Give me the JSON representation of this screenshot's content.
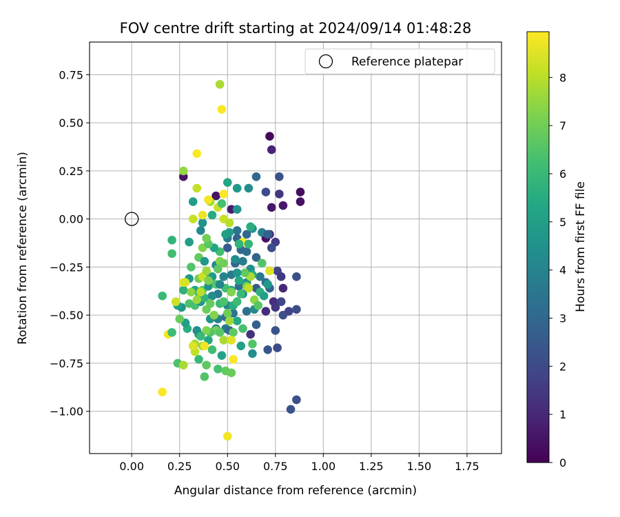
{
  "chart_data": {
    "type": "scatter",
    "title": "FOV centre drift starting at 2024/09/14 01:48:28",
    "xlabel": "Angular distance from reference (arcmin)",
    "ylabel": "Rotation from reference (arcmin)",
    "xlim": [
      -0.22,
      1.93
    ],
    "ylim": [
      -1.22,
      0.92
    ],
    "x_ticks": [
      0.0,
      0.25,
      0.5,
      0.75,
      1.0,
      1.25,
      1.5,
      1.75
    ],
    "x_tick_labels": [
      "0.00",
      "0.25",
      "0.50",
      "0.75",
      "1.00",
      "1.25",
      "1.50",
      "1.75"
    ],
    "y_ticks": [
      0.75,
      0.5,
      0.25,
      0.0,
      -0.25,
      -0.5,
      -0.75,
      -1.0
    ],
    "y_tick_labels": [
      "0.75",
      "0.50",
      "0.25",
      "0.00",
      "−0.25",
      "−0.50",
      "−0.75",
      "−1.00"
    ],
    "grid": true,
    "legend": {
      "location": "top-right",
      "entries": [
        {
          "label": "Reference platepar",
          "marker": "open-circle",
          "x": 0.0,
          "y": 0.0
        }
      ]
    },
    "colorbar": {
      "label": "Hours from first FF file",
      "colormap": "viridis",
      "range": [
        0,
        8.95
      ],
      "ticks": [
        0,
        1,
        2,
        3,
        4,
        5,
        6,
        7,
        8
      ],
      "tick_labels": [
        "0",
        "1",
        "2",
        "3",
        "4",
        "5",
        "6",
        "7",
        "8"
      ]
    },
    "points": [
      [
        0.72,
        0.43,
        0.2
      ],
      [
        0.73,
        0.36,
        0.9
      ],
      [
        0.88,
        0.14,
        0.3
      ],
      [
        0.88,
        0.09,
        0.4
      ],
      [
        0.79,
        0.07,
        0.6
      ],
      [
        0.73,
        0.06,
        0.6
      ],
      [
        0.77,
        0.13,
        1.4
      ],
      [
        0.7,
        0.14,
        2.0
      ],
      [
        0.77,
        0.22,
        2.3
      ],
      [
        0.65,
        0.22,
        3.0
      ],
      [
        0.27,
        0.22,
        0.5
      ],
      [
        0.44,
        0.12,
        0.5
      ],
      [
        0.52,
        0.05,
        0.7
      ],
      [
        0.7,
        -0.1,
        0.4
      ],
      [
        0.72,
        -0.08,
        1.2
      ],
      [
        0.75,
        -0.12,
        1.6
      ],
      [
        0.73,
        -0.15,
        2.1
      ],
      [
        0.86,
        -0.3,
        2.2
      ],
      [
        0.76,
        -0.27,
        1.8
      ],
      [
        0.78,
        -0.3,
        1.5
      ],
      [
        0.79,
        -0.36,
        1.0
      ],
      [
        0.74,
        -0.43,
        1.2
      ],
      [
        0.78,
        -0.43,
        1.9
      ],
      [
        0.75,
        -0.46,
        1.4
      ],
      [
        0.79,
        -0.5,
        2.2
      ],
      [
        0.82,
        -0.48,
        1.8
      ],
      [
        0.86,
        -0.47,
        2.1
      ],
      [
        0.7,
        -0.48,
        1.1
      ],
      [
        0.75,
        -0.58,
        2.3
      ],
      [
        0.76,
        -0.67,
        2.0
      ],
      [
        0.71,
        -0.68,
        2.4
      ],
      [
        0.86,
        -0.94,
        2.2
      ],
      [
        0.83,
        -0.99,
        2.3
      ],
      [
        0.62,
        -0.6,
        1.3
      ],
      [
        0.65,
        -0.55,
        2.7
      ],
      [
        0.6,
        -0.48,
        3.3
      ],
      [
        0.64,
        -0.47,
        4.3
      ],
      [
        0.65,
        -0.36,
        2.5
      ],
      [
        0.7,
        -0.33,
        3.1
      ],
      [
        0.72,
        -0.36,
        2.8
      ],
      [
        0.67,
        -0.3,
        3.6
      ],
      [
        0.62,
        -0.26,
        4.4
      ],
      [
        0.65,
        -0.2,
        2.9
      ],
      [
        0.6,
        -0.17,
        3.2
      ],
      [
        0.58,
        -0.12,
        2.6
      ],
      [
        0.6,
        -0.08,
        3.0
      ],
      [
        0.63,
        -0.05,
        4.5
      ],
      [
        0.68,
        -0.07,
        3.9
      ],
      [
        0.71,
        -0.08,
        2.7
      ],
      [
        0.55,
        -0.06,
        3.4
      ],
      [
        0.55,
        -0.1,
        2.8
      ],
      [
        0.5,
        -0.1,
        3.7
      ],
      [
        0.5,
        -0.15,
        2.5
      ],
      [
        0.57,
        -0.16,
        3.1
      ],
      [
        0.54,
        -0.23,
        2.9
      ],
      [
        0.52,
        -0.29,
        3.6
      ],
      [
        0.56,
        -0.35,
        3.2
      ],
      [
        0.6,
        -0.33,
        4.6
      ],
      [
        0.58,
        -0.39,
        4.1
      ],
      [
        0.52,
        -0.37,
        5.0
      ],
      [
        0.48,
        -0.3,
        4.0
      ],
      [
        0.44,
        -0.24,
        4.2
      ],
      [
        0.42,
        -0.3,
        4.8
      ],
      [
        0.45,
        -0.39,
        3.8
      ],
      [
        0.5,
        -0.45,
        4.1
      ],
      [
        0.53,
        -0.49,
        3.4
      ],
      [
        0.49,
        -0.51,
        3.2
      ],
      [
        0.45,
        -0.52,
        3.9
      ],
      [
        0.41,
        -0.52,
        4.6
      ],
      [
        0.44,
        -0.57,
        4.2
      ],
      [
        0.49,
        -0.57,
        3.5
      ],
      [
        0.51,
        -0.58,
        3.1
      ],
      [
        0.55,
        -0.53,
        5.4
      ],
      [
        0.53,
        -0.45,
        5.6
      ],
      [
        0.58,
        -0.57,
        6.3
      ],
      [
        0.57,
        -0.66,
        5.1
      ],
      [
        0.63,
        -0.7,
        4.4
      ],
      [
        0.63,
        -0.65,
        6.5
      ],
      [
        0.47,
        -0.71,
        5.2
      ],
      [
        0.42,
        -0.68,
        6.2
      ],
      [
        0.4,
        -0.63,
        5.3
      ],
      [
        0.35,
        -0.6,
        4.9
      ],
      [
        0.34,
        -0.58,
        4.4
      ],
      [
        0.29,
        -0.57,
        5.6
      ],
      [
        0.28,
        -0.54,
        5.0
      ],
      [
        0.26,
        -0.46,
        4.6
      ],
      [
        0.3,
        -0.44,
        6.4
      ],
      [
        0.27,
        -0.37,
        5.7
      ],
      [
        0.3,
        -0.31,
        4.8
      ],
      [
        0.35,
        -0.41,
        5.4
      ],
      [
        0.33,
        -0.45,
        6.3
      ],
      [
        0.36,
        -0.43,
        4.5
      ],
      [
        0.38,
        -0.41,
        5.8
      ],
      [
        0.37,
        -0.37,
        6.6
      ],
      [
        0.4,
        -0.35,
        4.5
      ],
      [
        0.38,
        -0.3,
        5.5
      ],
      [
        0.35,
        -0.31,
        7.0
      ],
      [
        0.33,
        -0.37,
        5.2
      ],
      [
        0.31,
        -0.25,
        6.5
      ],
      [
        0.35,
        -0.2,
        6.8
      ],
      [
        0.37,
        -0.15,
        7.3
      ],
      [
        0.38,
        -0.22,
        4.7
      ],
      [
        0.36,
        -0.06,
        4.1
      ],
      [
        0.37,
        -0.02,
        4.6
      ],
      [
        0.3,
        -0.12,
        5.0
      ],
      [
        0.32,
        0.09,
        5.0
      ],
      [
        0.41,
        0.09,
        7.7
      ],
      [
        0.45,
        0.06,
        8.3
      ],
      [
        0.5,
        0.19,
        5.3
      ],
      [
        0.47,
        0.08,
        6.3
      ],
      [
        0.55,
        0.16,
        4.8
      ],
      [
        0.55,
        0.05,
        4.6
      ],
      [
        0.61,
        0.16,
        4.4
      ],
      [
        0.49,
        -0.08,
        5.1
      ],
      [
        0.48,
        0.0,
        8.2
      ],
      [
        0.51,
        -0.02,
        8.0
      ],
      [
        0.58,
        -0.12,
        8.9
      ],
      [
        0.61,
        -0.13,
        5.9
      ],
      [
        0.62,
        -0.04,
        5.6
      ],
      [
        0.4,
        0.1,
        8.8
      ],
      [
        0.42,
        0.02,
        5.5
      ],
      [
        0.37,
        0.02,
        8.7
      ],
      [
        0.32,
        0.0,
        8.2
      ],
      [
        0.34,
        0.16,
        8.2
      ],
      [
        0.34,
        0.34,
        8.9
      ],
      [
        0.27,
        0.25,
        7.5
      ],
      [
        0.47,
        0.57,
        8.9
      ],
      [
        0.46,
        0.7,
        7.8
      ],
      [
        0.48,
        0.13,
        8.9
      ],
      [
        0.21,
        -0.11,
        5.8
      ],
      [
        0.21,
        -0.18,
        6.2
      ],
      [
        0.16,
        -0.4,
        6.0
      ],
      [
        0.24,
        -0.45,
        5.2
      ],
      [
        0.23,
        -0.43,
        8.3
      ],
      [
        0.27,
        -0.33,
        8.6
      ],
      [
        0.31,
        -0.38,
        7.4
      ],
      [
        0.36,
        -0.38,
        8.0
      ],
      [
        0.34,
        -0.42,
        7.6
      ],
      [
        0.37,
        -0.3,
        8.3
      ],
      [
        0.39,
        -0.27,
        7.6
      ],
      [
        0.4,
        -0.32,
        7.2
      ],
      [
        0.44,
        -0.34,
        6.5
      ],
      [
        0.46,
        -0.22,
        7.3
      ],
      [
        0.48,
        -0.23,
        7.0
      ],
      [
        0.45,
        -0.26,
        6.7
      ],
      [
        0.49,
        -0.36,
        6.2
      ],
      [
        0.52,
        -0.38,
        7.2
      ],
      [
        0.46,
        -0.44,
        6.0
      ],
      [
        0.48,
        -0.43,
        6.4
      ],
      [
        0.39,
        -0.47,
        6.9
      ],
      [
        0.43,
        -0.5,
        7.3
      ],
      [
        0.44,
        -0.58,
        7.1
      ],
      [
        0.5,
        -0.49,
        7.0
      ],
      [
        0.51,
        -0.53,
        7.6
      ],
      [
        0.53,
        -0.59,
        6.7
      ],
      [
        0.48,
        -0.63,
        7.8
      ],
      [
        0.52,
        -0.63,
        8.5
      ],
      [
        0.46,
        -0.59,
        6.6
      ],
      [
        0.41,
        -0.59,
        6.5
      ],
      [
        0.39,
        -0.58,
        7.2
      ],
      [
        0.36,
        -0.61,
        6.0
      ],
      [
        0.33,
        -0.65,
        7.7
      ],
      [
        0.33,
        -0.69,
        8.1
      ],
      [
        0.32,
        -0.66,
        8.5
      ],
      [
        0.37,
        -0.66,
        7.5
      ],
      [
        0.38,
        -0.66,
        8.8
      ],
      [
        0.35,
        -0.73,
        6.0
      ],
      [
        0.39,
        -0.76,
        6.7
      ],
      [
        0.38,
        -0.82,
        6.5
      ],
      [
        0.45,
        -0.78,
        6.3
      ],
      [
        0.49,
        -0.79,
        6.8
      ],
      [
        0.52,
        -0.8,
        6.9
      ],
      [
        0.53,
        -0.73,
        8.9
      ],
      [
        0.24,
        -0.75,
        6.4
      ],
      [
        0.27,
        -0.76,
        7.8
      ],
      [
        0.19,
        -0.6,
        8.8
      ],
      [
        0.21,
        -0.59,
        6.1
      ],
      [
        0.25,
        -0.52,
        6.9
      ],
      [
        0.16,
        -0.9,
        8.9
      ],
      [
        0.5,
        -1.13,
        8.8
      ],
      [
        0.28,
        -0.33,
        8.4
      ],
      [
        0.55,
        -0.43,
        6.1
      ],
      [
        0.57,
        -0.39,
        6.0
      ],
      [
        0.6,
        -0.35,
        7.2
      ],
      [
        0.61,
        -0.36,
        8.1
      ],
      [
        0.64,
        -0.42,
        7.4
      ],
      [
        0.66,
        -0.45,
        6.6
      ],
      [
        0.67,
        -0.38,
        5.7
      ],
      [
        0.69,
        -0.4,
        5.1
      ],
      [
        0.71,
        -0.34,
        4.8
      ],
      [
        0.72,
        -0.27,
        8.5
      ],
      [
        0.68,
        -0.23,
        6.5
      ],
      [
        0.63,
        -0.29,
        5.5
      ],
      [
        0.62,
        -0.3,
        7.8
      ],
      [
        0.59,
        -0.28,
        6.8
      ],
      [
        0.56,
        -0.32,
        5.4
      ],
      [
        0.55,
        -0.28,
        4.7
      ],
      [
        0.54,
        -0.21,
        4.3
      ],
      [
        0.58,
        -0.22,
        3.8
      ],
      [
        0.56,
        -0.13,
        5.8
      ],
      [
        0.51,
        -0.07,
        4.9
      ],
      [
        0.46,
        -0.17,
        6.2
      ],
      [
        0.43,
        -0.15,
        5.2
      ],
      [
        0.4,
        -0.13,
        6.6
      ],
      [
        0.39,
        -0.1,
        7.0
      ],
      [
        0.42,
        -0.4,
        4.3
      ],
      [
        0.46,
        -0.34,
        4.1
      ],
      [
        0.41,
        -0.44,
        6.8
      ]
    ]
  }
}
